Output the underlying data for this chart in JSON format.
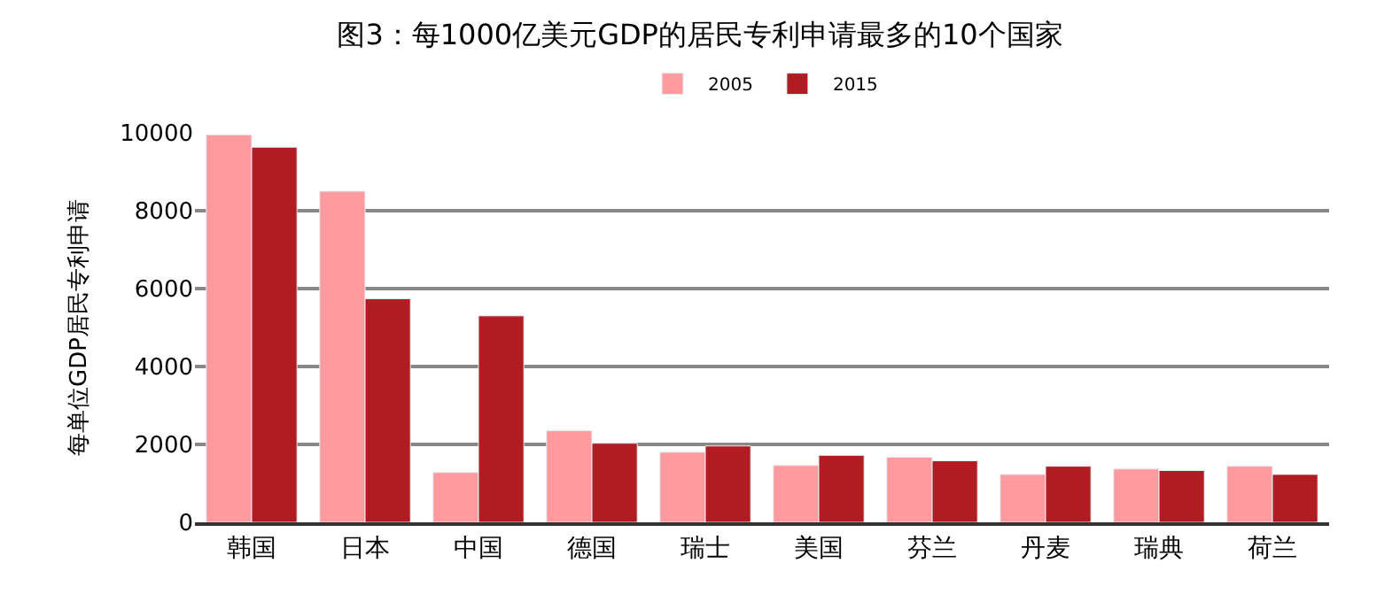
{
  "chart_data": {
    "type": "bar",
    "title": "图3：每1000亿美元GDP的居民专利申请最多的10个国家",
    "ylabel": "每单位GDP居民专利申请",
    "categories": [
      "韩国",
      "日本",
      "中国",
      "德国",
      "瑞士",
      "美国",
      "芬兰",
      "丹麦",
      "瑞典",
      "荷兰"
    ],
    "series": [
      {
        "name": "2005",
        "color": "#ff9a9e",
        "values": [
          9950,
          8500,
          1280,
          2350,
          1800,
          1460,
          1670,
          1230,
          1370,
          1440
        ]
      },
      {
        "name": "2015",
        "color": "#b01c22",
        "values": [
          9630,
          5740,
          5300,
          2030,
          1960,
          1720,
          1580,
          1440,
          1330,
          1230
        ]
      }
    ],
    "ylim": [
      0,
      10000
    ],
    "yticks": [
      0,
      2000,
      4000,
      6000,
      8000,
      10000
    ],
    "grid": "y",
    "legend": "top"
  }
}
